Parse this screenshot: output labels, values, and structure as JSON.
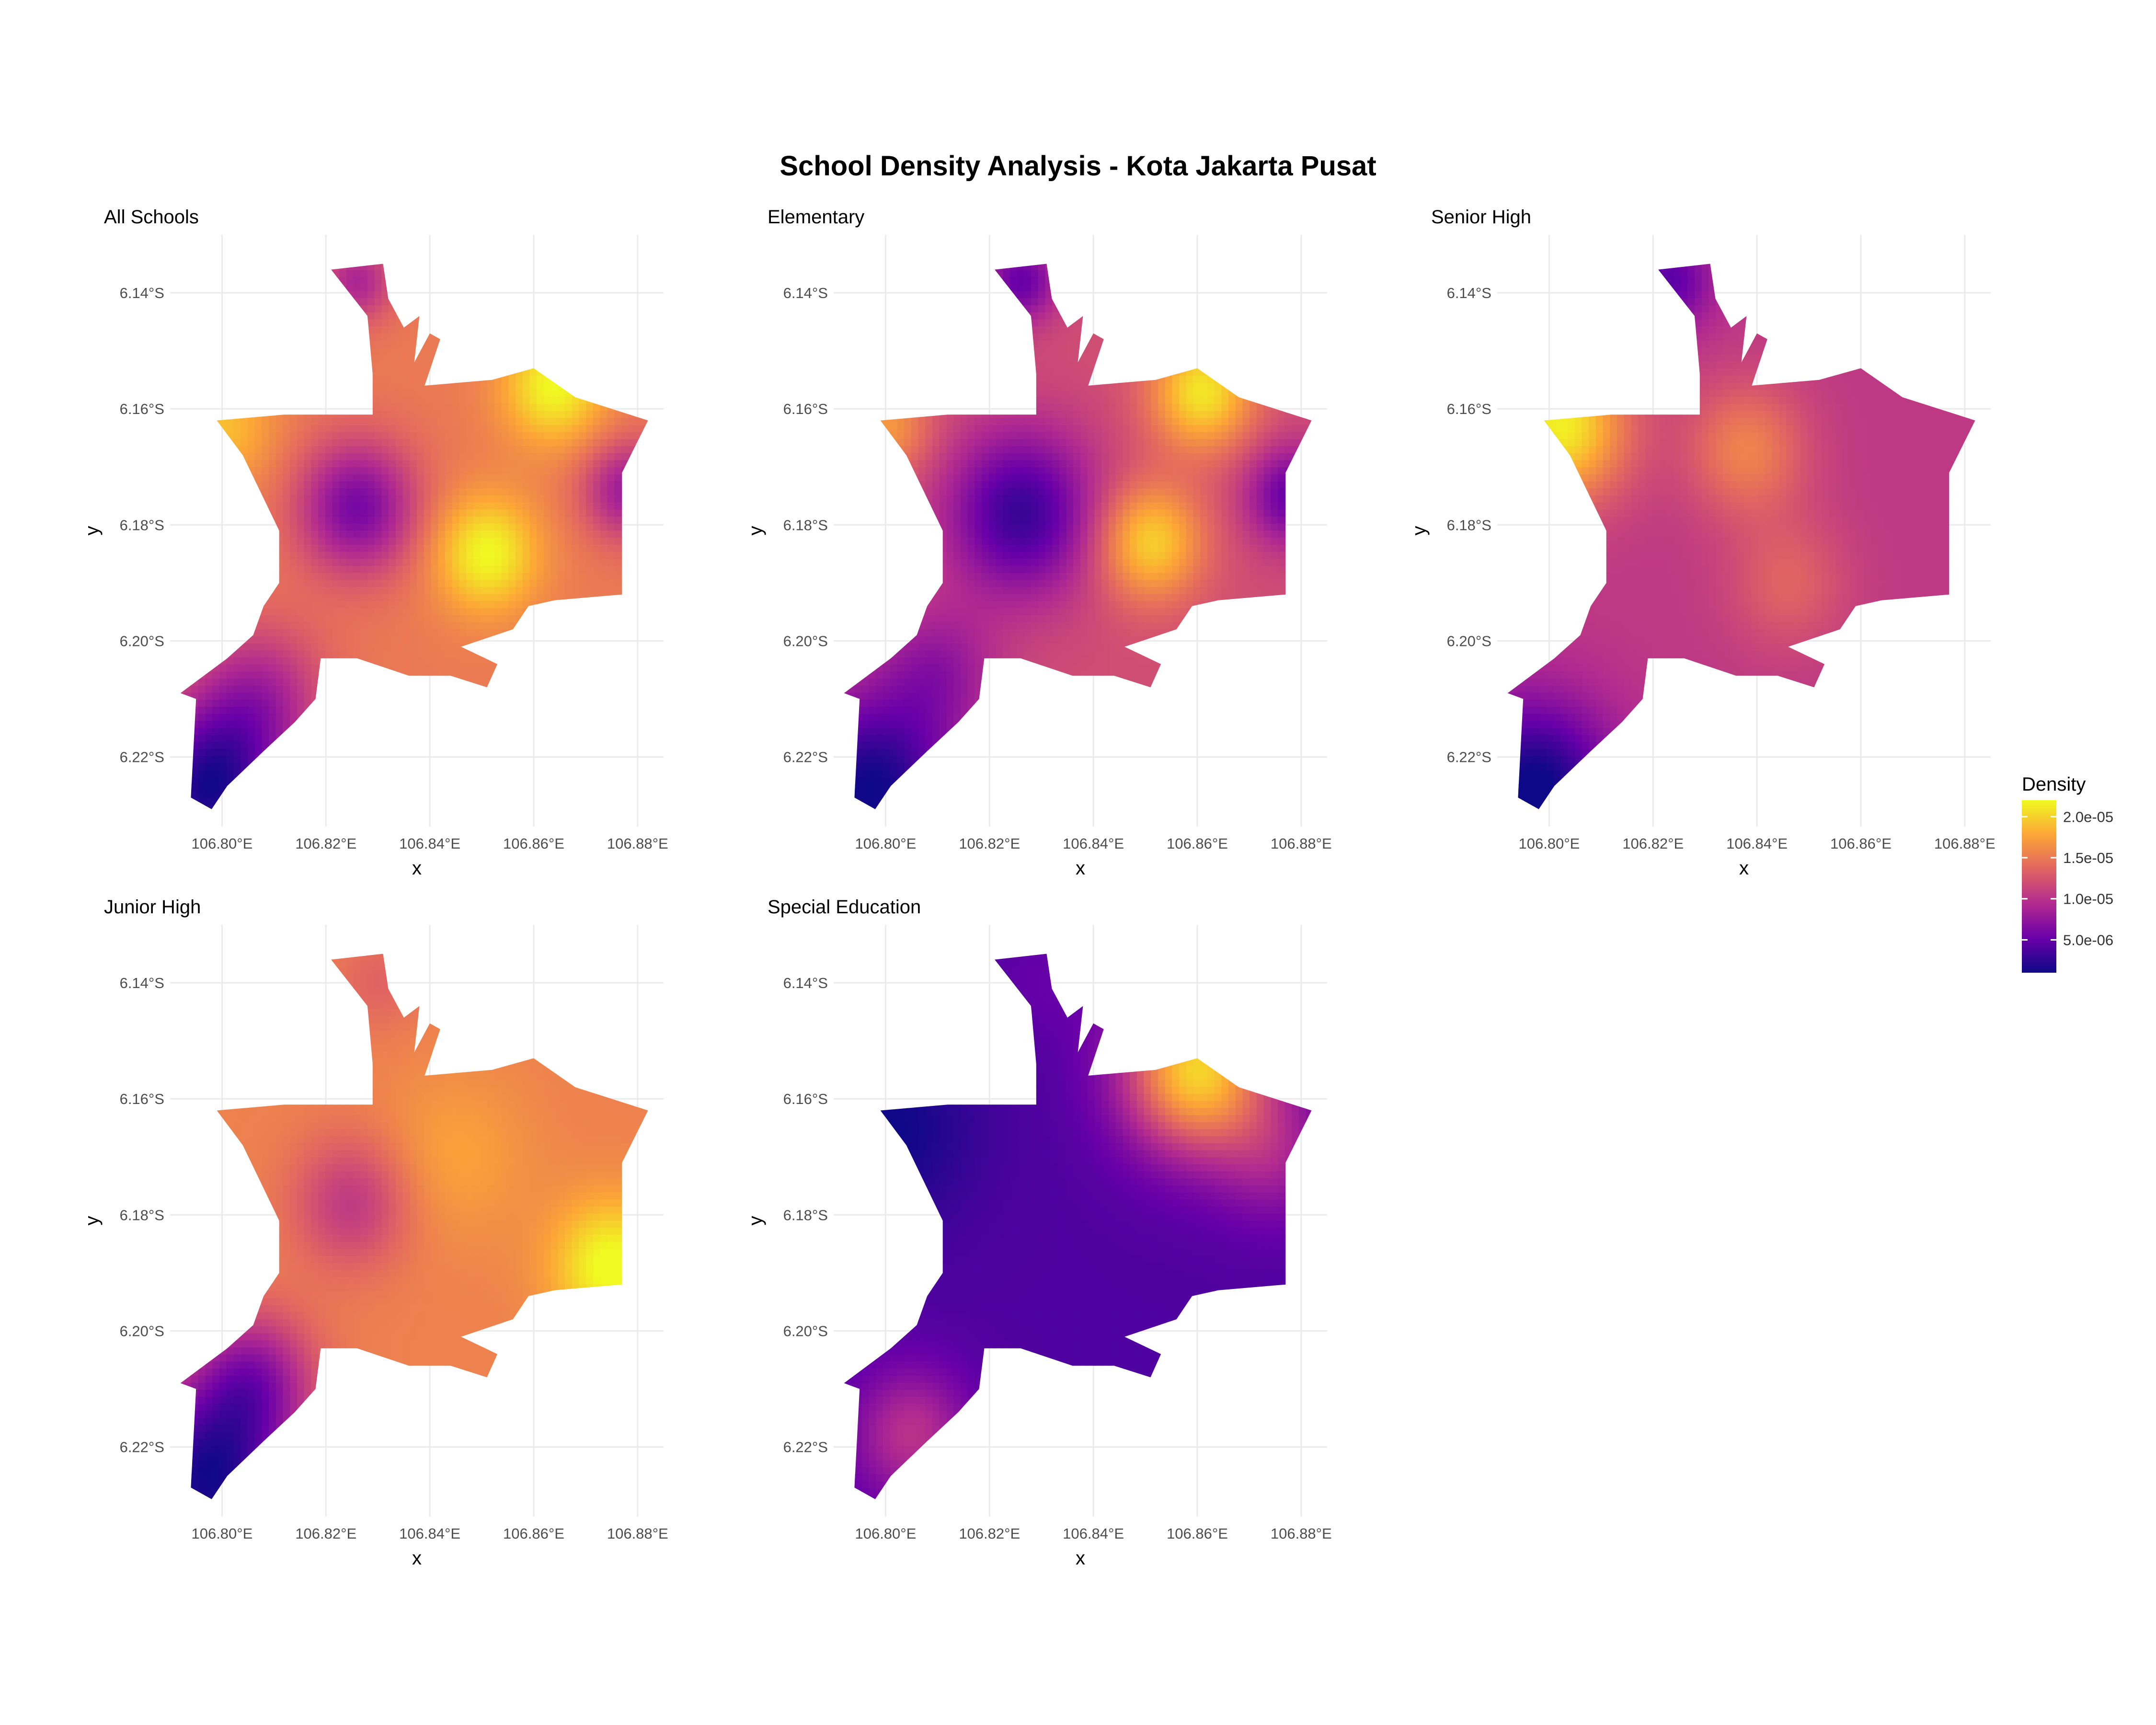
{
  "title": "School Density Analysis - Kota Jakarta Pusat",
  "colors": {
    "plasma": [
      "#0d0887",
      "#6a00a8",
      "#b12a90",
      "#e16462",
      "#fca636",
      "#f0f921"
    ],
    "grid": "#ebebeb",
    "background": "#ffffff"
  },
  "chart_data": {
    "type": "heatmap",
    "xlabel": "x",
    "ylabel": "y",
    "xlim": [
      106.79,
      106.885
    ],
    "ylim": [
      -6.232,
      -6.13
    ],
    "x_ticks": [
      106.8,
      106.82,
      106.84,
      106.86,
      106.88
    ],
    "x_tick_labels": [
      "106.80°E",
      "106.82°E",
      "106.84°E",
      "106.86°E",
      "106.88°E"
    ],
    "y_ticks": [
      -6.14,
      -6.16,
      -6.18,
      -6.2,
      -6.22
    ],
    "y_tick_labels": [
      "6.14°S",
      "6.16°S",
      "6.18°S",
      "6.20°S",
      "6.22°S"
    ],
    "grid": true,
    "boundary": [
      [
        106.821,
        -6.136
      ],
      [
        106.831,
        -6.135
      ],
      [
        106.832,
        -6.141
      ],
      [
        106.835,
        -6.146
      ],
      [
        106.838,
        -6.144
      ],
      [
        106.837,
        -6.152
      ],
      [
        106.84,
        -6.147
      ],
      [
        106.842,
        -6.148
      ],
      [
        106.839,
        -6.156
      ],
      [
        106.852,
        -6.155
      ],
      [
        106.86,
        -6.153
      ],
      [
        106.868,
        -6.158
      ],
      [
        106.882,
        -6.162
      ],
      [
        106.877,
        -6.171
      ],
      [
        106.877,
        -6.192
      ],
      [
        106.864,
        -6.193
      ],
      [
        106.859,
        -6.194
      ],
      [
        106.856,
        -6.198
      ],
      [
        106.846,
        -6.201
      ],
      [
        106.853,
        -6.204
      ],
      [
        106.851,
        -6.208
      ],
      [
        106.844,
        -6.206
      ],
      [
        106.836,
        -6.206
      ],
      [
        106.826,
        -6.203
      ],
      [
        106.819,
        -6.203
      ],
      [
        106.818,
        -6.21
      ],
      [
        106.814,
        -6.214
      ],
      [
        106.808,
        -6.219
      ],
      [
        106.801,
        -6.225
      ],
      [
        106.798,
        -6.229
      ],
      [
        106.794,
        -6.227
      ],
      [
        106.795,
        -6.21
      ],
      [
        106.792,
        -6.209
      ],
      [
        106.801,
        -6.203
      ],
      [
        106.806,
        -6.199
      ],
      [
        106.808,
        -6.194
      ],
      [
        106.811,
        -6.19
      ],
      [
        106.811,
        -6.181
      ],
      [
        106.804,
        -6.168
      ],
      [
        106.799,
        -6.162
      ],
      [
        106.812,
        -6.161
      ],
      [
        106.82,
        -6.161
      ],
      [
        106.829,
        -6.161
      ],
      [
        106.829,
        -6.154
      ],
      [
        106.828,
        -6.144
      ]
    ],
    "color_scale": {
      "name": "Density",
      "min": 1e-06,
      "max": 2.2e-05,
      "ticks": [
        5e-06,
        1e-05,
        1.5e-05,
        2e-05
      ],
      "tick_labels": [
        "5.0e-06",
        "1.0e-05",
        "1.5e-05",
        "2.0e-05"
      ]
    },
    "panels": [
      {
        "name": "All Schools",
        "base": 1.5e-05,
        "hotspots": [
          {
            "x": 106.826,
            "y": -6.177,
            "s": 0.008,
            "a": -9e-06
          },
          {
            "x": 106.851,
            "y": -6.185,
            "s": 0.007,
            "a": 7e-06
          },
          {
            "x": 106.864,
            "y": -6.156,
            "s": 0.007,
            "a": 7e-06
          },
          {
            "x": 106.878,
            "y": -6.174,
            "s": 0.006,
            "a": -7e-06
          },
          {
            "x": 106.797,
            "y": -6.226,
            "s": 0.01,
            "a": -1.3e-05
          },
          {
            "x": 106.807,
            "y": -6.21,
            "s": 0.009,
            "a": -6e-06
          },
          {
            "x": 106.8,
            "y": -6.163,
            "s": 0.007,
            "a": 4e-06
          },
          {
            "x": 106.826,
            "y": -6.138,
            "s": 0.005,
            "a": -6e-06
          }
        ]
      },
      {
        "name": "Elementary",
        "base": 1.2e-05,
        "hotspots": [
          {
            "x": 106.826,
            "y": -6.178,
            "s": 0.01,
            "a": -9e-06
          },
          {
            "x": 106.851,
            "y": -6.183,
            "s": 0.007,
            "a": 8e-06
          },
          {
            "x": 106.861,
            "y": -6.157,
            "s": 0.007,
            "a": 9e-06
          },
          {
            "x": 106.878,
            "y": -6.175,
            "s": 0.006,
            "a": -7e-06
          },
          {
            "x": 106.797,
            "y": -6.226,
            "s": 0.012,
            "a": -1.1e-05
          },
          {
            "x": 106.81,
            "y": -6.205,
            "s": 0.008,
            "a": -4e-06
          },
          {
            "x": 106.8,
            "y": -6.163,
            "s": 0.006,
            "a": 5e-06
          },
          {
            "x": 106.826,
            "y": -6.138,
            "s": 0.005,
            "a": -7e-06
          }
        ]
      },
      {
        "name": "Senior High",
        "base": 1.05e-05,
        "hotspots": [
          {
            "x": 106.802,
            "y": -6.163,
            "s": 0.009,
            "a": 1.1e-05
          },
          {
            "x": 106.838,
            "y": -6.167,
            "s": 0.008,
            "a": 5e-06
          },
          {
            "x": 106.846,
            "y": -6.19,
            "s": 0.008,
            "a": 3e-06
          },
          {
            "x": 106.797,
            "y": -6.226,
            "s": 0.011,
            "a": -1e-05
          },
          {
            "x": 106.823,
            "y": -6.138,
            "s": 0.006,
            "a": -6e-06
          }
        ]
      },
      {
        "name": "Junior High",
        "base": 1.55e-05,
        "hotspots": [
          {
            "x": 106.825,
            "y": -6.178,
            "s": 0.008,
            "a": -5e-06
          },
          {
            "x": 106.875,
            "y": -6.189,
            "s": 0.008,
            "a": 7e-06
          },
          {
            "x": 106.845,
            "y": -6.17,
            "s": 0.01,
            "a": 2e-06
          },
          {
            "x": 106.797,
            "y": -6.226,
            "s": 0.012,
            "a": -1.4e-05
          },
          {
            "x": 106.806,
            "y": -6.208,
            "s": 0.008,
            "a": -7e-06
          },
          {
            "x": 106.83,
            "y": -6.14,
            "s": 0.006,
            "a": -2e-06
          }
        ]
      },
      {
        "name": "Special Education",
        "base": 4e-06,
        "hotspots": [
          {
            "x": 106.86,
            "y": -6.155,
            "s": 0.01,
            "a": 1.6e-05
          },
          {
            "x": 106.875,
            "y": -6.17,
            "s": 0.008,
            "a": 4e-06
          },
          {
            "x": 106.805,
            "y": -6.218,
            "s": 0.008,
            "a": 6e-06
          },
          {
            "x": 106.8,
            "y": -6.165,
            "s": 0.012,
            "a": -3e-06
          },
          {
            "x": 106.83,
            "y": -6.14,
            "s": 0.007,
            "a": 1e-06
          }
        ]
      }
    ]
  }
}
